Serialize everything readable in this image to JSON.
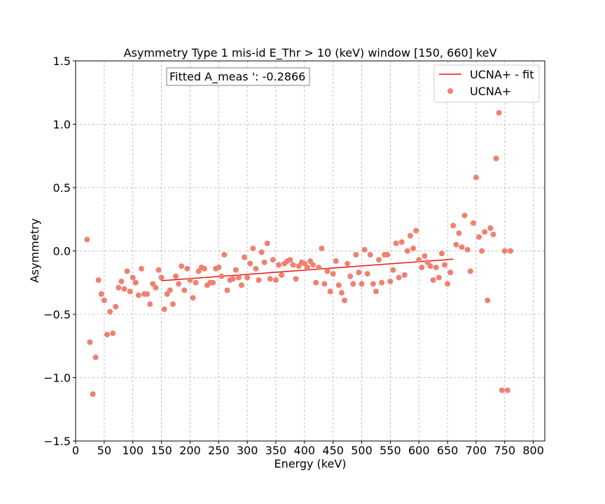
{
  "chart_data": {
    "type": "scatter",
    "title": "Asymmetry Type 1 mis-id  E_Thr > 10 (keV) window [150, 660] keV",
    "xlabel": "Energy (keV)",
    "ylabel": "Asymmetry",
    "xlim": [
      0,
      820
    ],
    "ylim": [
      -1.5,
      1.5
    ],
    "xticks": [
      0,
      50,
      100,
      150,
      200,
      250,
      300,
      350,
      400,
      450,
      500,
      550,
      600,
      650,
      700,
      750,
      800
    ],
    "yticks": [
      -1.5,
      -1.0,
      -0.5,
      0.0,
      0.5,
      1.0,
      1.5
    ],
    "ytick_labels": [
      "−1.5",
      "−1.0",
      "−0.5",
      "0.0",
      "0.5",
      "1.0",
      "1.5"
    ],
    "grid": true,
    "legend_position": "upper-right",
    "annotation": "Fitted A_meas ': -0.2866",
    "colors": {
      "points": "#f08070",
      "fit": "#ee1111",
      "grid": "#b0b0b0"
    },
    "series": [
      {
        "name": "UCNA+ - fit",
        "kind": "line",
        "x": [
          150,
          660
        ],
        "y": [
          -0.235,
          -0.065
        ]
      },
      {
        "name": "UCNA+",
        "kind": "scatter",
        "points": [
          [
            20,
            0.09
          ],
          [
            25,
            -0.72
          ],
          [
            30,
            -1.13
          ],
          [
            35,
            -0.84
          ],
          [
            40,
            -0.23
          ],
          [
            45,
            -0.34
          ],
          [
            50,
            -0.39
          ],
          [
            55,
            -0.66
          ],
          [
            60,
            -0.48
          ],
          [
            65,
            -0.65
          ],
          [
            70,
            -0.44
          ],
          [
            75,
            -0.29
          ],
          [
            80,
            -0.24
          ],
          [
            85,
            -0.3
          ],
          [
            90,
            -0.16
          ],
          [
            95,
            -0.32
          ],
          [
            100,
            -0.21
          ],
          [
            105,
            -0.25
          ],
          [
            110,
            -0.35
          ],
          [
            115,
            -0.14
          ],
          [
            120,
            -0.34
          ],
          [
            125,
            -0.34
          ],
          [
            130,
            -0.42
          ],
          [
            135,
            -0.26
          ],
          [
            140,
            -0.29
          ],
          [
            145,
            -0.15
          ],
          [
            150,
            -0.21
          ],
          [
            155,
            -0.46
          ],
          [
            160,
            -0.34
          ],
          [
            165,
            -0.31
          ],
          [
            170,
            -0.42
          ],
          [
            175,
            -0.2
          ],
          [
            180,
            -0.26
          ],
          [
            185,
            -0.12
          ],
          [
            190,
            -0.31
          ],
          [
            195,
            -0.14
          ],
          [
            200,
            -0.23
          ],
          [
            205,
            -0.37
          ],
          [
            210,
            -0.25
          ],
          [
            215,
            -0.16
          ],
          [
            220,
            -0.13
          ],
          [
            225,
            -0.14
          ],
          [
            230,
            -0.27
          ],
          [
            235,
            -0.25
          ],
          [
            240,
            -0.25
          ],
          [
            245,
            -0.14
          ],
          [
            250,
            -0.13
          ],
          [
            255,
            -0.2
          ],
          [
            260,
            -0.03
          ],
          [
            265,
            -0.31
          ],
          [
            270,
            -0.23
          ],
          [
            275,
            -0.22
          ],
          [
            280,
            -0.15
          ],
          [
            285,
            -0.21
          ],
          [
            290,
            -0.27
          ],
          [
            295,
            -0.05
          ],
          [
            300,
            -0.21
          ],
          [
            305,
            -0.1
          ],
          [
            310,
            0.02
          ],
          [
            315,
            -0.14
          ],
          [
            320,
            -0.23
          ],
          [
            325,
            -0.01
          ],
          [
            330,
            -0.09
          ],
          [
            335,
            0.06
          ],
          [
            340,
            -0.22
          ],
          [
            345,
            -0.07
          ],
          [
            350,
            -0.23
          ],
          [
            355,
            -0.11
          ],
          [
            360,
            -0.19
          ],
          [
            365,
            -0.1
          ],
          [
            370,
            -0.08
          ],
          [
            375,
            -0.07
          ],
          [
            380,
            -0.11
          ],
          [
            385,
            -0.22
          ],
          [
            390,
            -0.12
          ],
          [
            395,
            -0.09
          ],
          [
            400,
            -0.1
          ],
          [
            405,
            -0.13
          ],
          [
            410,
            -0.08
          ],
          [
            415,
            -0.11
          ],
          [
            420,
            -0.25
          ],
          [
            425,
            -0.13
          ],
          [
            430,
            0.02
          ],
          [
            435,
            -0.26
          ],
          [
            440,
            -0.16
          ],
          [
            445,
            -0.32
          ],
          [
            450,
            -0.18
          ],
          [
            455,
            -0.08
          ],
          [
            460,
            -0.27
          ],
          [
            465,
            -0.33
          ],
          [
            470,
            -0.39
          ],
          [
            475,
            -0.1
          ],
          [
            480,
            -0.2
          ],
          [
            485,
            -0.26
          ],
          [
            490,
            -0.03
          ],
          [
            495,
            -0.17
          ],
          [
            500,
            -0.26
          ],
          [
            505,
            0.01
          ],
          [
            510,
            -0.18
          ],
          [
            515,
            -0.03
          ],
          [
            520,
            -0.26
          ],
          [
            525,
            -0.32
          ],
          [
            530,
            -0.07
          ],
          [
            535,
            -0.25
          ],
          [
            540,
            -0.03
          ],
          [
            545,
            -0.03
          ],
          [
            550,
            -0.24
          ],
          [
            555,
            -0.15
          ],
          [
            560,
            0.06
          ],
          [
            565,
            -0.21
          ],
          [
            570,
            0.07
          ],
          [
            575,
            -0.19
          ],
          [
            580,
            0.0
          ],
          [
            585,
            0.12
          ],
          [
            590,
            0.02
          ],
          [
            595,
            0.16
          ],
          [
            600,
            -0.07
          ],
          [
            605,
            -0.13
          ],
          [
            610,
            -0.04
          ],
          [
            615,
            -0.09
          ],
          [
            620,
            -0.12
          ],
          [
            625,
            -0.23
          ],
          [
            630,
            -0.13
          ],
          [
            635,
            -0.21
          ],
          [
            640,
            -0.02
          ],
          [
            645,
            -0.11
          ],
          [
            650,
            -0.26
          ],
          [
            655,
            -0.17
          ],
          [
            660,
            0.2
          ],
          [
            665,
            0.05
          ],
          [
            670,
            0.14
          ],
          [
            675,
            0.03
          ],
          [
            680,
            0.28
          ],
          [
            685,
            0.01
          ],
          [
            690,
            -0.16
          ],
          [
            695,
            0.22
          ],
          [
            700,
            0.58
          ],
          [
            705,
            0.11
          ],
          [
            710,
            0.0
          ],
          [
            715,
            0.15
          ],
          [
            720,
            -0.39
          ],
          [
            725,
            0.18
          ],
          [
            730,
            0.13
          ],
          [
            735,
            0.73
          ],
          [
            740,
            1.09
          ],
          [
            745,
            -1.1
          ],
          [
            750,
            0.0
          ],
          [
            755,
            -1.1
          ],
          [
            760,
            0.0
          ]
        ]
      }
    ]
  }
}
